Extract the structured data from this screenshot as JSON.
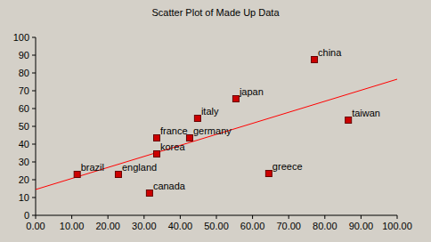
{
  "chart_data": {
    "type": "scatter",
    "title": "Scatter Plot of Made Up Data",
    "x": [
      11.5,
      22.9,
      31.5,
      33.5,
      33.5,
      42.6,
      44.8,
      55.4,
      64.5,
      77.1,
      86.5
    ],
    "values": [
      23,
      23,
      12.5,
      34.5,
      43.5,
      43.5,
      54.5,
      65.5,
      23.5,
      87.5,
      53.5
    ],
    "labels": [
      "brazil",
      "england",
      "canada",
      "korea",
      "france",
      "germany",
      "italy",
      "japan",
      "greece",
      "china",
      "taiwan"
    ],
    "color": "#cc0000",
    "marker": "square",
    "trend_line": {
      "x": [
        0,
        100
      ],
      "values": [
        14.5,
        76.5
      ],
      "color": "#ff0000"
    },
    "xlim": [
      0,
      100
    ],
    "ylim": [
      0,
      100
    ],
    "xticks": [
      {
        "value": 0,
        "label": "0.00"
      },
      {
        "value": 10,
        "label": "10.00"
      },
      {
        "value": 20,
        "label": "20.00"
      },
      {
        "value": 30,
        "label": "30.00"
      },
      {
        "value": 40,
        "label": "40.00"
      },
      {
        "value": 50,
        "label": "50.00"
      },
      {
        "value": 60,
        "label": "60.00"
      },
      {
        "value": 70,
        "label": "70.00"
      },
      {
        "value": 80,
        "label": "80.00"
      },
      {
        "value": 90,
        "label": "90.00"
      },
      {
        "value": 100,
        "label": "100.00"
      }
    ],
    "yticks": [
      0,
      10,
      20,
      30,
      40,
      50,
      60,
      70,
      80,
      90,
      100
    ],
    "grid": false
  }
}
